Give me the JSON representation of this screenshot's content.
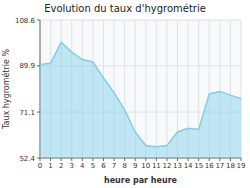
{
  "chart_data": {
    "type": "area",
    "title": "Evolution du taux d'hygrométrie",
    "xlabel": "heure par heure",
    "ylabel": "Taux hygrométrie %",
    "x": [
      0,
      1,
      2,
      3,
      4,
      5,
      6,
      7,
      8,
      9,
      10,
      11,
      12,
      13,
      14,
      15,
      16,
      17,
      18,
      19
    ],
    "values": [
      90.5,
      91.0,
      99.5,
      95.5,
      92.5,
      91.5,
      85.0,
      79.0,
      72.0,
      63.0,
      57.5,
      57.0,
      57.5,
      63.0,
      64.5,
      64.0,
      78.5,
      79.5,
      78.0,
      76.5
    ],
    "color": "#7ecfe8",
    "xlim": [
      0,
      19
    ],
    "ylim": [
      52.4,
      108.6
    ],
    "xticks": [
      0,
      1,
      2,
      3,
      4,
      5,
      6,
      7,
      8,
      9,
      10,
      11,
      12,
      13,
      14,
      15,
      16,
      17,
      18,
      19
    ],
    "yticks": [
      52.4,
      71.1,
      89.9,
      108.6
    ],
    "grid": true
  }
}
